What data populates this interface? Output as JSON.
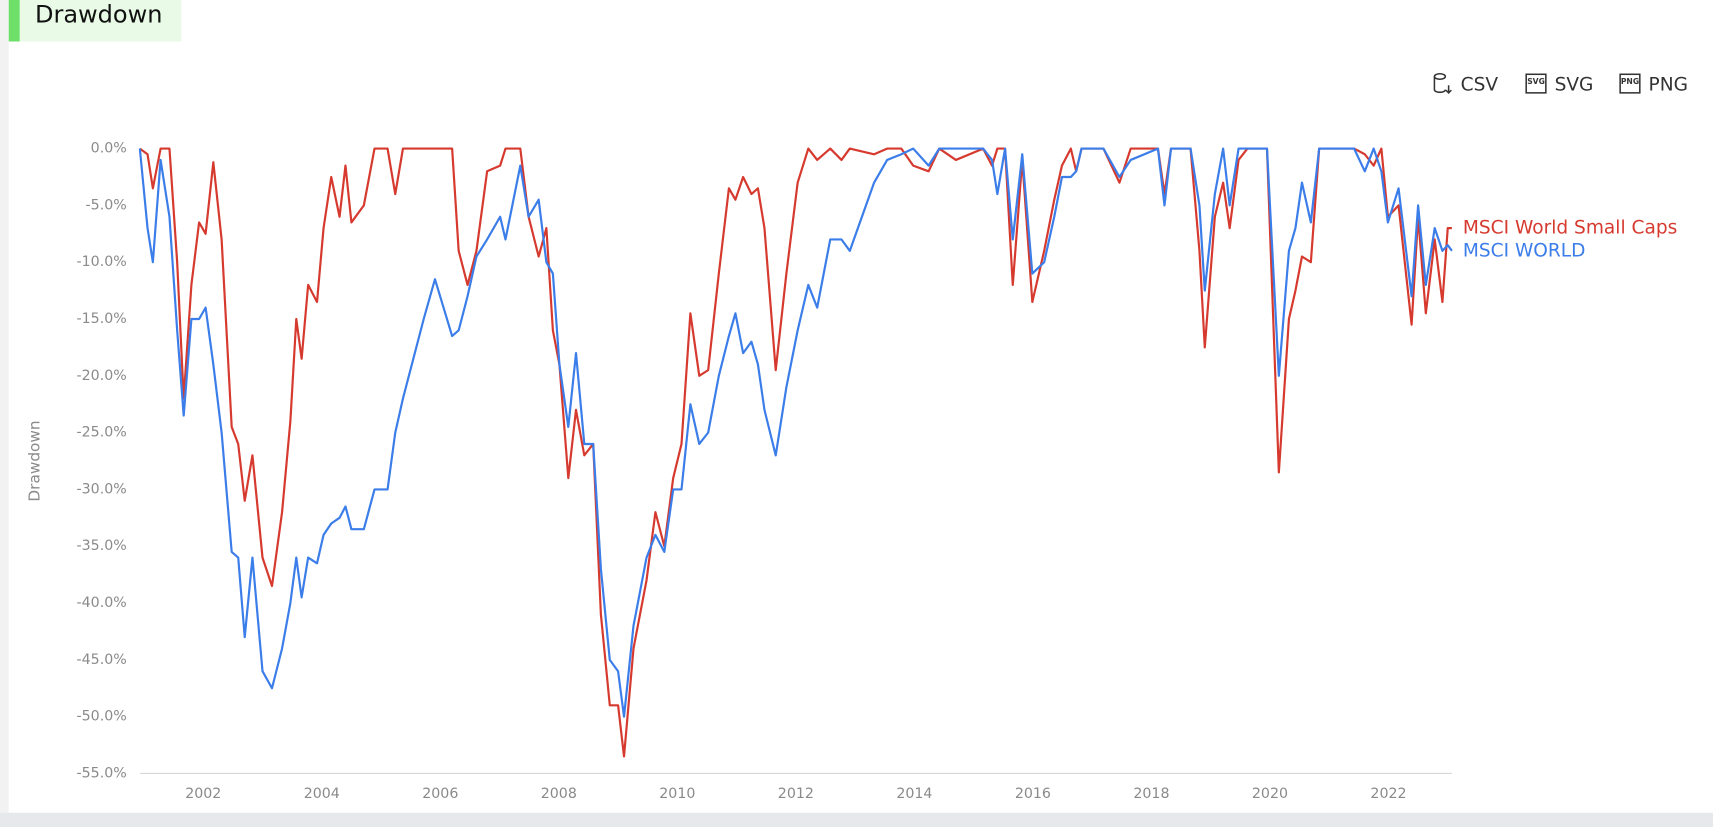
{
  "header": {
    "title": "Drawdown"
  },
  "toolbar": {
    "buttons": [
      "CSV",
      "SVG",
      "PNG"
    ]
  },
  "chart_data": {
    "type": "line",
    "ylabel": "Drawdown",
    "x": [
      2000.93,
      2001.06,
      2001.15,
      2001.28,
      2001.43,
      2001.56,
      2001.67,
      2001.8,
      2001.93,
      2002.04,
      2002.17,
      2002.31,
      2002.48,
      2002.59,
      2002.7,
      2002.83,
      2003.0,
      2003.16,
      2003.33,
      2003.47,
      2003.57,
      2003.66,
      2003.77,
      2003.92,
      2004.03,
      2004.16,
      2004.3,
      2004.4,
      2004.5,
      2004.71,
      2004.89,
      2005.11,
      2005.24,
      2005.37,
      2005.72,
      2005.91,
      2006.2,
      2006.31,
      2006.46,
      2006.61,
      2006.79,
      2007.01,
      2007.1,
      2007.35,
      2007.49,
      2007.66,
      2007.79,
      2007.9,
      2008.01,
      2008.16,
      2008.29,
      2008.43,
      2008.58,
      2008.71,
      2008.86,
      2009.0,
      2009.1,
      2009.26,
      2009.48,
      2009.63,
      2009.78,
      2009.93,
      2010.07,
      2010.22,
      2010.37,
      2010.52,
      2010.7,
      2010.87,
      2010.98,
      2011.11,
      2011.25,
      2011.36,
      2011.47,
      2011.66,
      2011.84,
      2012.03,
      2012.21,
      2012.36,
      2012.58,
      2012.77,
      2012.91,
      2013.32,
      2013.54,
      2013.78,
      2013.98,
      2014.24,
      2014.42,
      2014.7,
      2015.16,
      2015.31,
      2015.4,
      2015.53,
      2015.66,
      2015.82,
      2015.99,
      2016.19,
      2016.36,
      2016.49,
      2016.64,
      2016.73,
      2016.82,
      2017.19,
      2017.46,
      2017.65,
      2018.11,
      2018.22,
      2018.33,
      2018.66,
      2018.81,
      2018.9,
      2019.07,
      2019.21,
      2019.32,
      2019.47,
      2019.62,
      2019.95,
      2020.15,
      2020.32,
      2020.43,
      2020.54,
      2020.69,
      2020.83,
      2021.42,
      2021.6,
      2021.75,
      2021.88,
      2021.99,
      2022.17,
      2022.39,
      2022.5,
      2022.63,
      2022.78,
      2022.91,
      2023.0,
      2023.07
    ],
    "series": [
      {
        "name": "MSCI World Small Caps",
        "color": "#d63a2f",
        "values": [
          0,
          -0.5,
          -3.5,
          0,
          0,
          -10,
          -22,
          -12,
          -6.5,
          -7.5,
          -1.2,
          -8,
          -24.5,
          -26,
          -31,
          -27,
          -36,
          -38.5,
          -32,
          -24,
          -15,
          -18.5,
          -12,
          -13.5,
          -7,
          -2.5,
          -6,
          -1.5,
          -6.5,
          -5,
          0,
          0,
          -4,
          0,
          0,
          0,
          0,
          -9,
          -12,
          -9,
          -2,
          -1.5,
          0,
          0,
          -6,
          -9.5,
          -7,
          -16,
          -19,
          -29,
          -23,
          -27,
          -26,
          -41,
          -49,
          -49,
          -53.5,
          -44,
          -38,
          -32,
          -35,
          -29,
          -26,
          -14.5,
          -20,
          -19.5,
          -11,
          -3.5,
          -4.5,
          -2.5,
          -4,
          -3.5,
          -7,
          -19.5,
          -11,
          -3,
          0,
          -1,
          0,
          -1,
          0,
          -0.5,
          0,
          0,
          -1.5,
          -2,
          0,
          -1,
          0,
          -1.5,
          0,
          0,
          -12,
          -1,
          -13.5,
          -9,
          -4.5,
          -1.5,
          0,
          -2,
          0,
          0,
          -3,
          0,
          0,
          -4,
          0,
          0,
          -9,
          -17.5,
          -6,
          -3,
          -7,
          -1,
          0,
          0,
          -28.5,
          -15,
          -12.5,
          -9.5,
          -10,
          0,
          0,
          -0.5,
          -1.5,
          0,
          -6,
          -5,
          -15.5,
          -6,
          -14.5,
          -8,
          -13.5,
          -7,
          -7
        ]
      },
      {
        "name": "MSCI WORLD",
        "color": "#3b7de9",
        "values": [
          0,
          -7,
          -10,
          -1,
          -6,
          -16,
          -23.5,
          -15,
          -15,
          -14,
          -19,
          -25,
          -35.5,
          -36,
          -43,
          -36,
          -46,
          -47.5,
          -44,
          -40,
          -36,
          -39.5,
          -36,
          -36.5,
          -34,
          -33,
          -32.5,
          -31.5,
          -33.5,
          -33.5,
          -30,
          -30,
          -25,
          -22,
          -15,
          -11.5,
          -16.5,
          -16,
          -13,
          -9.5,
          -8,
          -6,
          -8,
          -1.5,
          -6,
          -4.5,
          -10,
          -11,
          -19,
          -24.5,
          -18,
          -26,
          -26,
          -37,
          -45,
          -46,
          -50,
          -42,
          -36,
          -34,
          -35.5,
          -30,
          -30,
          -22.5,
          -26,
          -25,
          -20,
          -16.5,
          -14.5,
          -18,
          -17,
          -19,
          -23,
          -27,
          -21,
          -16,
          -12,
          -14,
          -8,
          -8,
          -9,
          -3,
          -1,
          -0.5,
          0,
          -1.5,
          0,
          0,
          0,
          -1,
          -4,
          0,
          -8,
          -0.5,
          -11,
          -10,
          -6,
          -2.5,
          -2.5,
          -2,
          0,
          0,
          -2.5,
          -1,
          0,
          -5,
          0,
          0,
          -5,
          -12.5,
          -4,
          0,
          -5,
          0,
          0,
          0,
          -20,
          -9,
          -7,
          -3,
          -6.5,
          0,
          0,
          -2,
          0,
          -2,
          -6.5,
          -3.5,
          -13,
          -5,
          -12,
          -7,
          -9,
          -8.5,
          -9
        ]
      }
    ],
    "xlim": [
      2000.93,
      2023.07
    ],
    "xticks": [
      2002,
      2004,
      2006,
      2008,
      2010,
      2012,
      2014,
      2016,
      2018,
      2020,
      2022
    ],
    "ylim": [
      -55,
      0
    ],
    "yticks": [
      {
        "value": 0,
        "label": "0.0%"
      },
      {
        "value": -5,
        "label": "-5.0%"
      },
      {
        "value": -10,
        "label": "-10.0%"
      },
      {
        "value": -15,
        "label": "-15.0%"
      },
      {
        "value": -20,
        "label": "-20.0%"
      },
      {
        "value": -25,
        "label": "-25.0%"
      },
      {
        "value": -30,
        "label": "-30.0%"
      },
      {
        "value": -35,
        "label": "-35.0%"
      },
      {
        "value": -40,
        "label": "-40.0%"
      },
      {
        "value": -45,
        "label": "-45.0%"
      },
      {
        "value": -50,
        "label": "-50.0%"
      },
      {
        "value": -55,
        "label": "-55.0%"
      }
    ],
    "grid": false
  }
}
